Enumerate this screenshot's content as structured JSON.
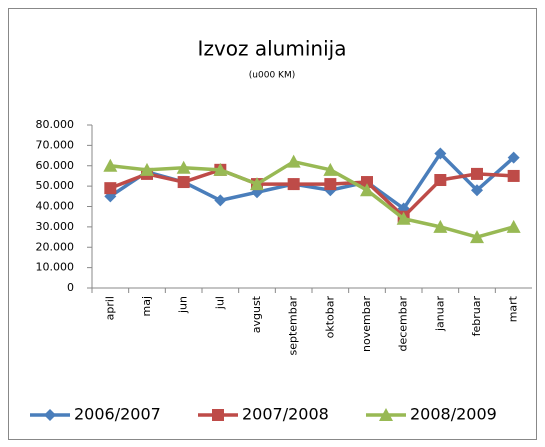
{
  "chart_data": {
    "type": "line",
    "title": "Izvoz aluminija",
    "subtitle": "(u000 KM)",
    "categories": [
      "april",
      "maj",
      "jun",
      "jul",
      "avgust",
      "septembar",
      "oktobar",
      "novembar",
      "decembar",
      "januar",
      "februar",
      "mart"
    ],
    "series": [
      {
        "name": "2006/2007",
        "color": "#4a7ebb",
        "marker": "diamond",
        "values": [
          45000,
          57000,
          52000,
          43000,
          47000,
          51000,
          48000,
          52000,
          39000,
          66000,
          48000,
          64000
        ]
      },
      {
        "name": "2007/2008",
        "color": "#be4b48",
        "marker": "square",
        "values": [
          49000,
          56000,
          52000,
          58000,
          51000,
          51000,
          51000,
          52000,
          35000,
          53000,
          56000,
          55000
        ]
      },
      {
        "name": "2008/2009",
        "color": "#98b954",
        "marker": "triangle",
        "values": [
          60000,
          58000,
          59000,
          58000,
          51000,
          62000,
          58000,
          48000,
          34000,
          30000,
          25000,
          30000
        ]
      }
    ],
    "ylim": [
      0,
      80000
    ],
    "yticks": [
      0,
      {
        "value": 10000,
        "label": "10.000"
      },
      {
        "value": 20000,
        "label": "20.000"
      },
      {
        "value": 30000,
        "label": "30.000"
      },
      {
        "value": 40000,
        "label": "40.000"
      },
      {
        "value": 50000,
        "label": "50.000"
      },
      {
        "value": 60000,
        "label": "60.000"
      },
      {
        "value": 70000,
        "label": "70.000"
      },
      {
        "value": 80000,
        "label": "80.000"
      }
    ],
    "grid": false,
    "legend": "bottom"
  }
}
